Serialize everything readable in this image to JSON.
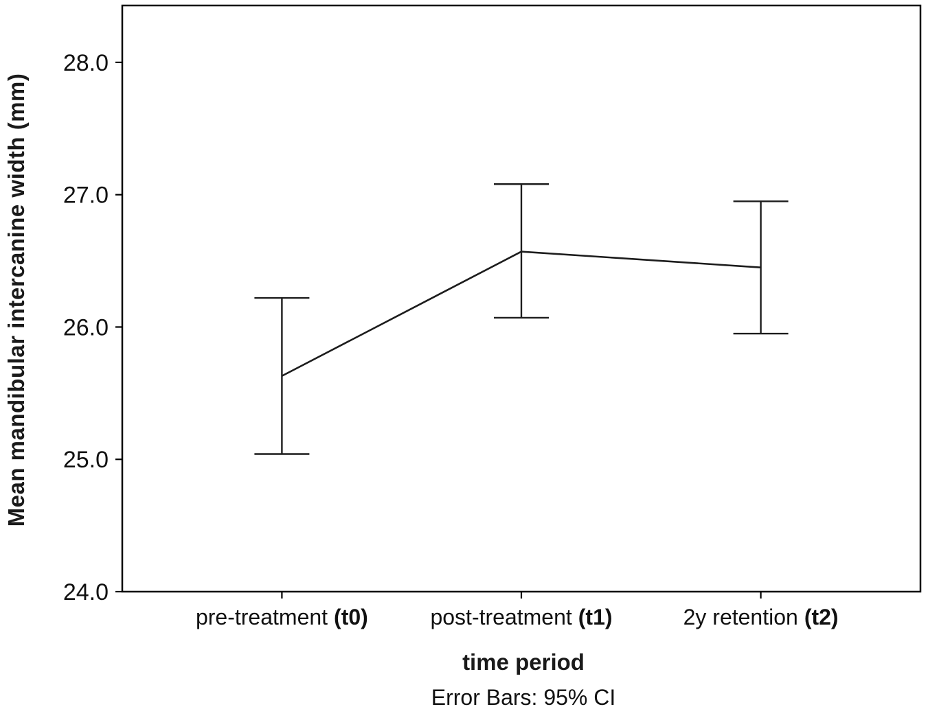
{
  "figure": {
    "background": "#ffffff",
    "line_color": "#1c1c1c",
    "axis_color": "#000000",
    "text_color": "#111111"
  },
  "chart_data": {
    "type": "line",
    "title": "",
    "ylabel": "Mean mandibular intercanine width (mm)",
    "xlabel": "time period",
    "caption": "Error Bars: 95% CI",
    "error_bar_meaning": "95% CI",
    "categories": [
      {
        "label": "pre-treatment",
        "suffix": "(t0)"
      },
      {
        "label": "post-treatment",
        "suffix": "(t1)"
      },
      {
        "label": "2y retention",
        "suffix": "(t2)"
      }
    ],
    "series": [
      {
        "name": "Mean mandibular intercanine width",
        "means": [
          25.63,
          26.57,
          26.45
        ],
        "ci_lower": [
          25.04,
          26.07,
          25.95
        ],
        "ci_upper": [
          26.22,
          27.08,
          26.95
        ]
      }
    ],
    "y_ticks": [
      24.0,
      25.0,
      26.0,
      27.0,
      28.0
    ],
    "y_tick_labels": [
      "24.0",
      "25.0",
      "26.0",
      "27.0",
      "28.0"
    ],
    "ylim": [
      24.0,
      28.43
    ],
    "grid": false,
    "legend": "none"
  }
}
